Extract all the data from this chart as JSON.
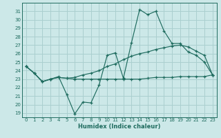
{
  "xlabel": "Humidex (Indice chaleur)",
  "bg_color": "#cce8e8",
  "grid_color": "#aacfcf",
  "line_color": "#1e6b5e",
  "tick_color": "#1e6b5e",
  "xlim": [
    -0.5,
    23.5
  ],
  "ylim": [
    18.5,
    32.0
  ],
  "xticks": [
    0,
    1,
    2,
    3,
    4,
    5,
    6,
    7,
    8,
    9,
    10,
    11,
    12,
    13,
    14,
    15,
    16,
    17,
    18,
    19,
    20,
    21,
    22,
    23
  ],
  "yticks": [
    19,
    20,
    21,
    22,
    23,
    24,
    25,
    26,
    27,
    28,
    29,
    30,
    31
  ],
  "series": [
    [
      24.5,
      23.7,
      22.7,
      23.0,
      23.3,
      21.2,
      18.9,
      20.3,
      20.2,
      22.3,
      25.8,
      26.1,
      23.1,
      27.3,
      31.2,
      30.6,
      31.0,
      28.7,
      27.2,
      27.2,
      26.2,
      25.8,
      25.0,
      23.5
    ],
    [
      24.5,
      23.7,
      22.7,
      23.0,
      23.2,
      23.1,
      23.0,
      23.0,
      23.0,
      23.0,
      23.0,
      23.0,
      23.0,
      23.0,
      23.0,
      23.1,
      23.2,
      23.2,
      23.2,
      23.3,
      23.3,
      23.3,
      23.3,
      23.5
    ],
    [
      24.5,
      23.7,
      22.7,
      23.0,
      23.2,
      23.1,
      23.2,
      23.5,
      23.7,
      24.0,
      24.5,
      24.8,
      25.3,
      25.7,
      26.0,
      26.2,
      26.5,
      26.7,
      26.9,
      27.0,
      26.8,
      26.3,
      25.8,
      23.5
    ]
  ]
}
